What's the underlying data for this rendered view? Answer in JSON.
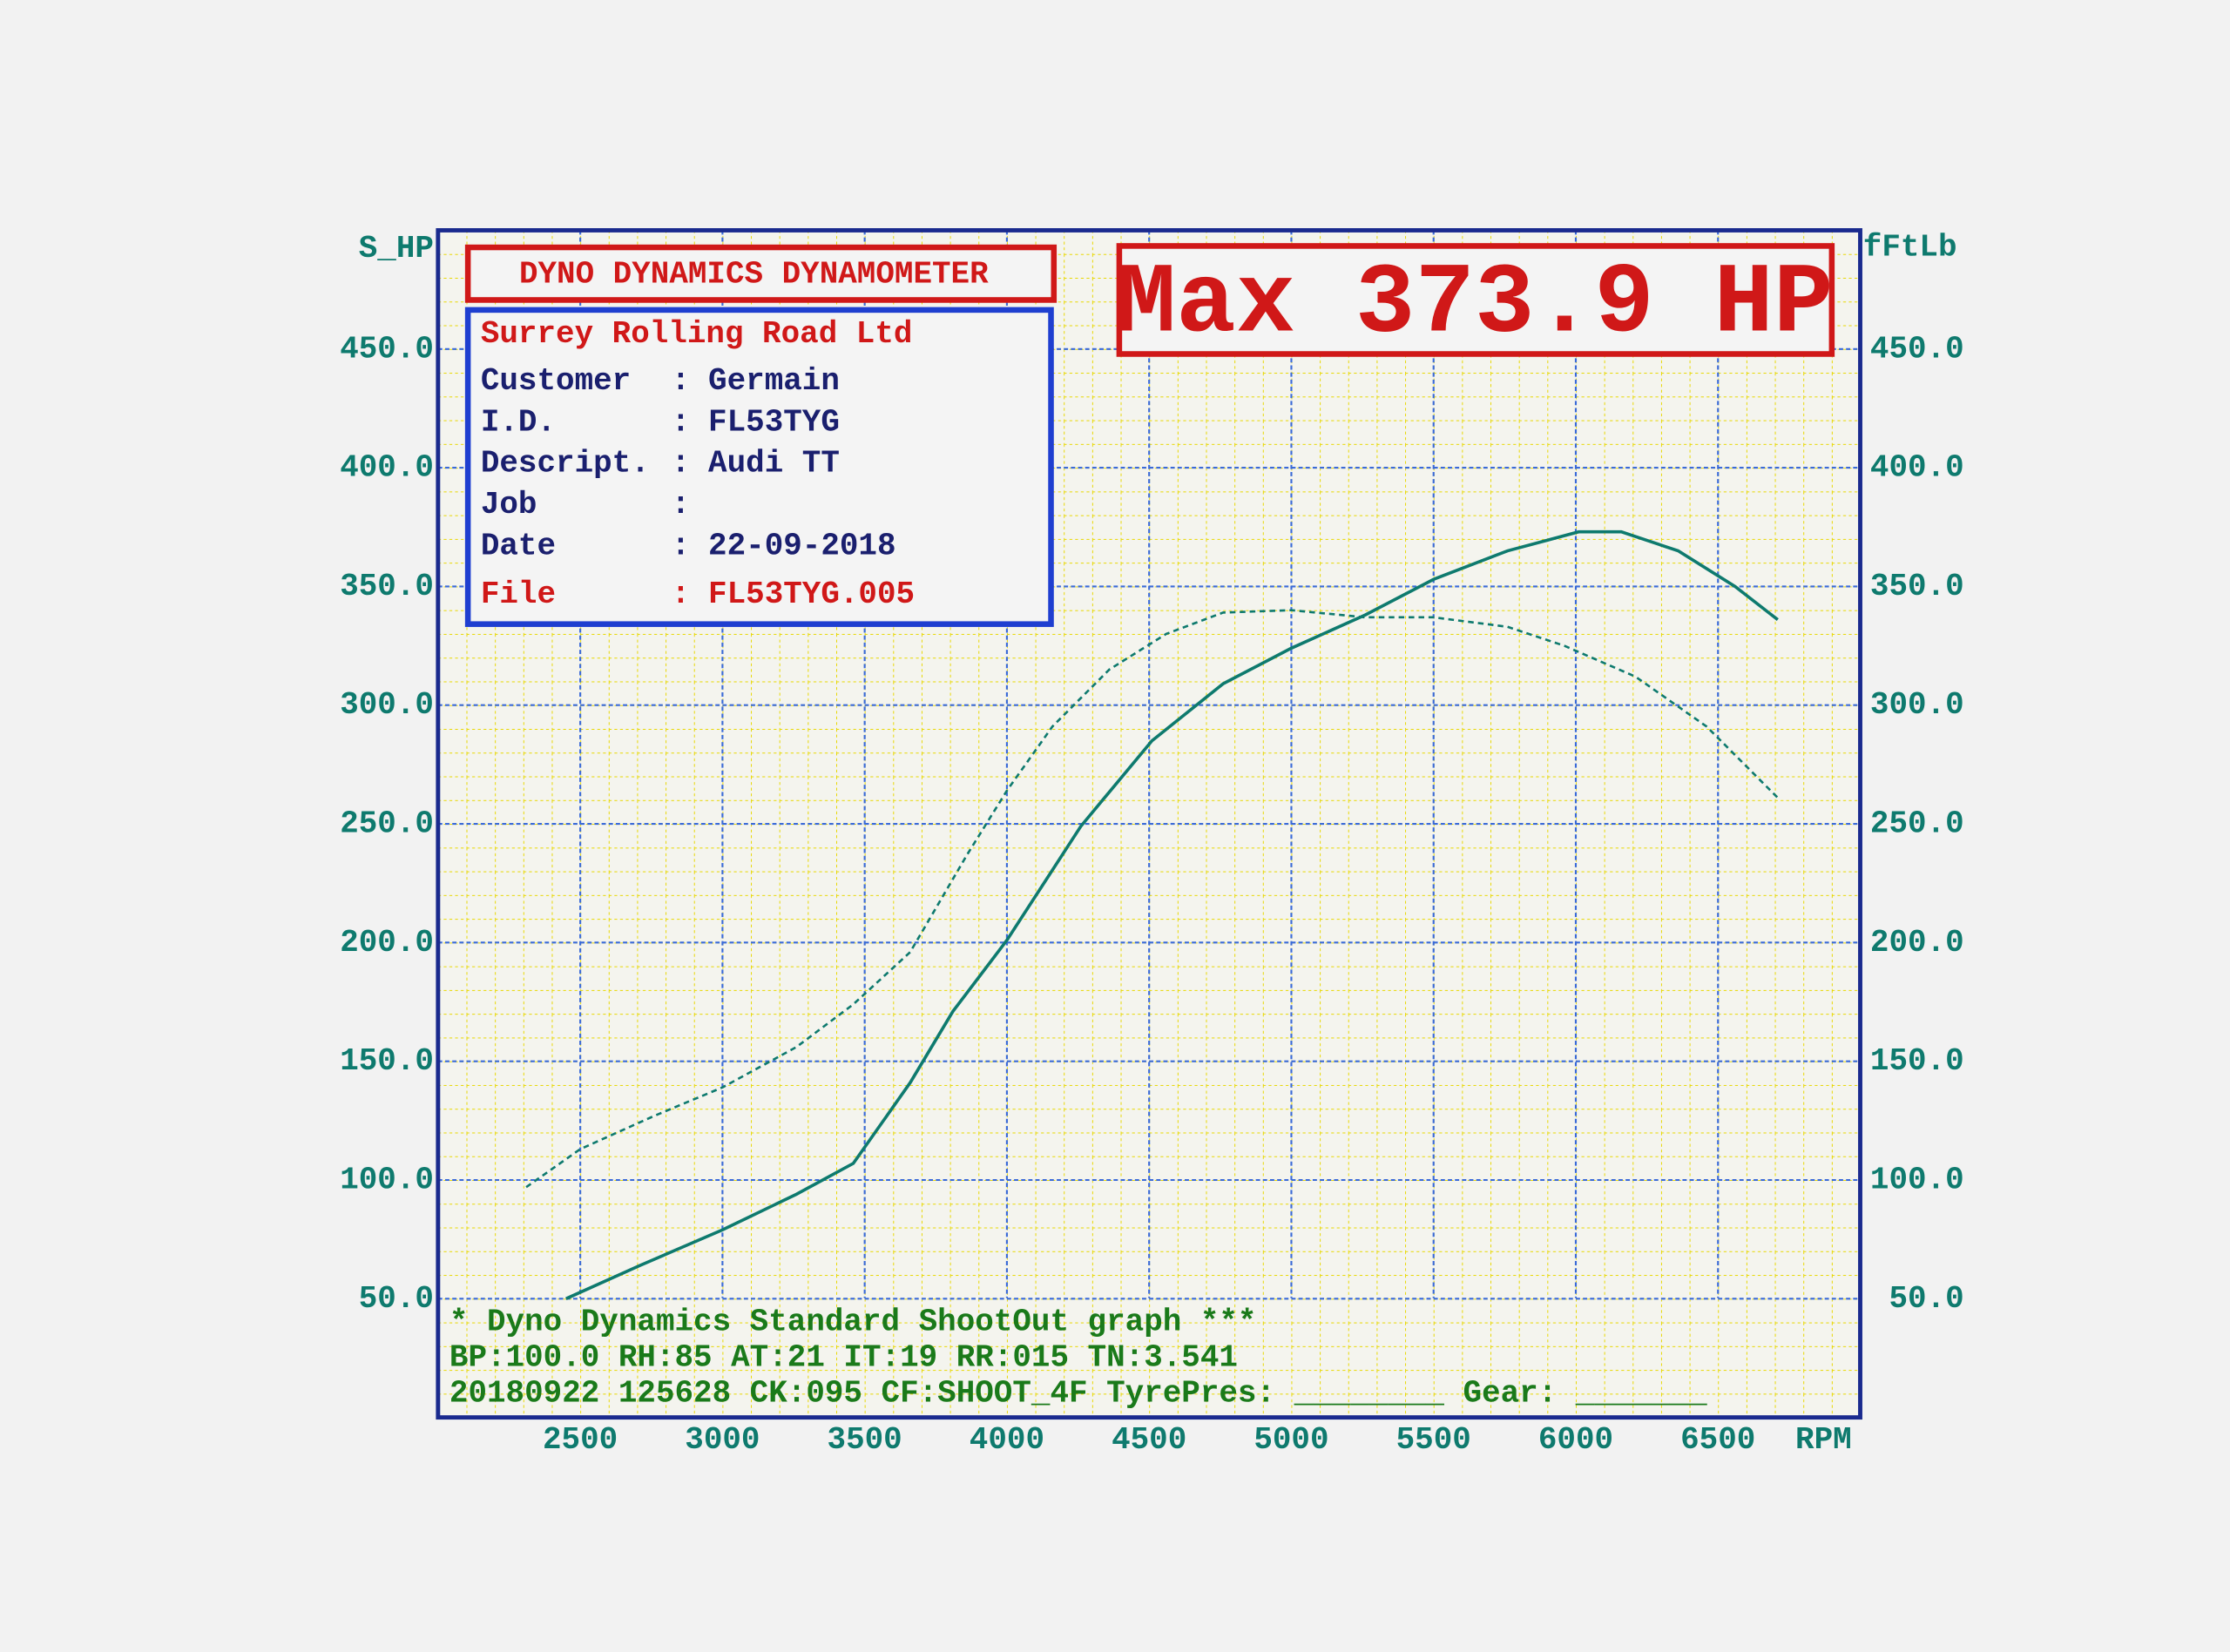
{
  "chart_data": {
    "type": "line",
    "header": "DYNO DYNAMICS DYNAMOMETER",
    "company": "Surrey Rolling Road Ltd",
    "info_rows": [
      {
        "label": "Customer",
        "value": "Germain"
      },
      {
        "label": "I.D.",
        "value": "FL53TYG"
      },
      {
        "label": "Descript.",
        "value": "Audi TT"
      },
      {
        "label": "Job"
      },
      {
        "label": "Date",
        "value": "22-09-2018"
      },
      {
        "label": "File",
        "value": "FL53TYG.005"
      }
    ],
    "max_label": "Max 373.9 HP",
    "footer": [
      "* Dyno Dynamics Standard ShootOut graph ***",
      "BP:100.0 RH:85 AT:21 IT:19  RR:015 TN:3.541",
      "20180922 125628 CK:095 CF:SHOOT_4F TyrePres: ________ Gear: _______"
    ],
    "ylabel": "S_HP",
    "y2label": "fFtLb",
    "xlabel": "RPM",
    "xlim": [
      2000,
      7000
    ],
    "xticks": [
      2500,
      3000,
      3500,
      4000,
      4500,
      5000,
      5500,
      6000,
      6500
    ],
    "ylim": [
      0,
      500
    ],
    "yticks": [
      {
        "value": 50,
        "label": "50.0"
      },
      {
        "value": 100,
        "label": "100.0"
      },
      {
        "value": 150,
        "label": "150.0"
      },
      {
        "value": 200,
        "label": "200.0"
      },
      {
        "value": 250,
        "label": "250.0"
      },
      {
        "value": 300,
        "label": "300.0"
      },
      {
        "value": 350,
        "label": "350.0"
      },
      {
        "value": 400,
        "label": "400.0"
      },
      {
        "value": 450,
        "label": "450.0"
      }
    ],
    "y2lim": [
      0,
      500
    ],
    "y2ticks": [
      {
        "value": 50,
        "label": "50.0"
      },
      {
        "value": 100,
        "label": "100.0"
      },
      {
        "value": 150,
        "label": "150.0"
      },
      {
        "value": 200,
        "label": "200.0"
      },
      {
        "value": 250,
        "label": "250.0"
      },
      {
        "value": 300,
        "label": "300.0"
      },
      {
        "value": 350,
        "label": "350.0"
      },
      {
        "value": 400,
        "label": "400.0"
      },
      {
        "value": 450,
        "label": "450.0"
      }
    ],
    "grid": true,
    "series": [
      {
        "color": "#0e7a6e",
        "style": "solid",
        "x": [
          2450,
          2710,
          3000,
          3260,
          3460,
          3660,
          3810,
          4000,
          4260,
          4510,
          4760,
          5000,
          5260,
          5500,
          5760,
          6010,
          6160,
          6360,
          6560,
          6710
        ],
        "values": [
          50,
          64,
          79,
          94,
          107,
          141,
          171,
          201,
          249,
          285,
          309,
          324,
          338,
          353,
          365,
          373,
          373,
          365,
          350,
          336
        ]
      },
      {
        "color": "#0e7a6e",
        "style": "dashed",
        "axis": "y2",
        "x": [
          2310,
          2500,
          2760,
          3000,
          3260,
          3460,
          3660,
          3860,
          4000,
          4160,
          4360,
          4560,
          4760,
          5000,
          5260,
          5500,
          5760,
          5960,
          6210,
          6460,
          6710
        ],
        "values": [
          97,
          113,
          127,
          139,
          156,
          174,
          196,
          237,
          264,
          291,
          315,
          330,
          339,
          340,
          337,
          337,
          333,
          325,
          312,
          291,
          261
        ]
      }
    ]
  }
}
